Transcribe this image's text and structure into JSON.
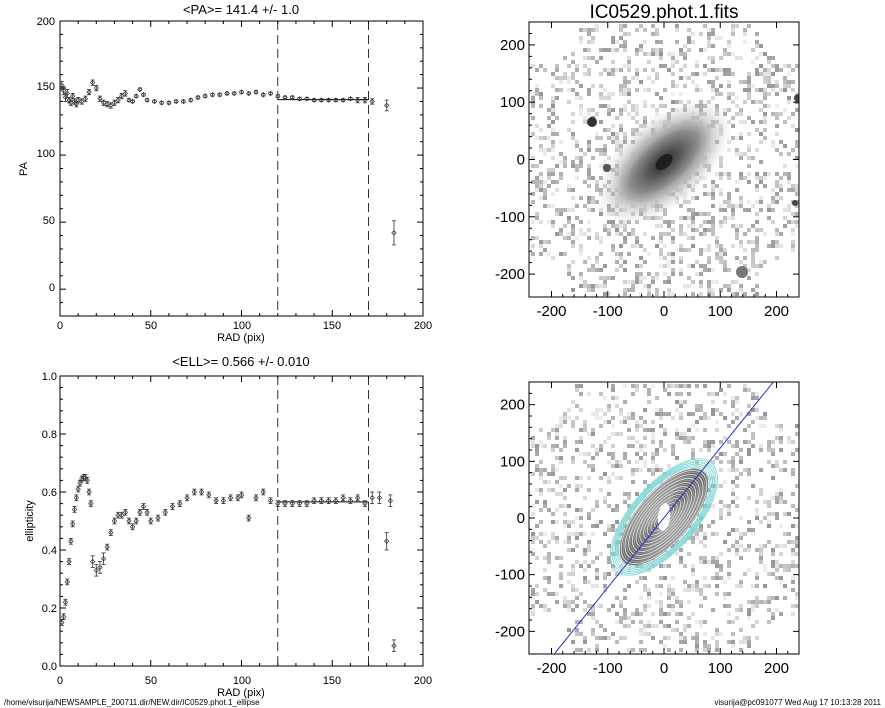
{
  "footer": {
    "left": "/home/visurija/NEWSAMPLE_200711.dir/NEW.dir/IC0529.phot.1_ellipse",
    "right": "visurija@pc091077  Wed Aug 17 10:13:28 2011"
  },
  "colors": {
    "axes": "#000000",
    "data": "#333333",
    "contour_gray": "#d8d8d8",
    "contour_cyan": "#7fd6d6",
    "major_axis_line": "#2233cc"
  },
  "chart_data": [
    {
      "id": "pa",
      "type": "scatter",
      "title": "<PA>= 141.4 +/-   1.0",
      "xlabel": "RAD (pix)",
      "ylabel": "PA",
      "xlim": [
        0,
        200
      ],
      "ylim": [
        -20,
        200
      ],
      "xticks": [
        "0",
        "50",
        "100",
        "150",
        "200"
      ],
      "yticks": [
        "0",
        "50",
        "100",
        "150",
        "200"
      ],
      "mean_line": 141.4,
      "vlines": [
        120,
        170
      ],
      "x": [
        1,
        2,
        3,
        4,
        5,
        6,
        7,
        8,
        9,
        10,
        12,
        14,
        16,
        18,
        20,
        22,
        24,
        26,
        28,
        30,
        32,
        34,
        36,
        38,
        40,
        42,
        44,
        46,
        48,
        52,
        56,
        60,
        64,
        68,
        72,
        76,
        80,
        84,
        88,
        92,
        96,
        100,
        104,
        108,
        112,
        116,
        120,
        124,
        128,
        132,
        136,
        140,
        144,
        148,
        152,
        156,
        160,
        164,
        168,
        172,
        180,
        184
      ],
      "y": [
        152,
        148,
        143,
        146,
        141,
        139,
        144,
        140,
        138,
        141,
        140,
        142,
        147,
        154,
        150,
        142,
        139,
        138,
        137,
        139,
        141,
        144,
        146,
        141,
        140,
        144,
        149,
        145,
        141,
        140,
        139,
        139,
        140,
        140,
        141,
        143,
        144,
        145,
        145,
        146,
        146,
        147,
        146,
        147,
        145,
        146,
        144,
        143,
        143,
        142,
        142,
        141,
        141,
        141,
        141,
        141,
        142,
        141,
        141,
        140,
        137,
        42
      ],
      "err": [
        3,
        3,
        3,
        3,
        2,
        2,
        2,
        2,
        2,
        2,
        2,
        2,
        2,
        2,
        2,
        2,
        2,
        2,
        2,
        2,
        2,
        2,
        2,
        1,
        1,
        1,
        1,
        1,
        1,
        1,
        1,
        1,
        1,
        1,
        1,
        1,
        1,
        1,
        1,
        1,
        1,
        1,
        1,
        1,
        1,
        1,
        1,
        1,
        1,
        1,
        1,
        1,
        1,
        1,
        1,
        1,
        1,
        2,
        2,
        2,
        4,
        9
      ]
    },
    {
      "id": "ell",
      "type": "scatter",
      "title": "<ELL>= 0.566 +/-  0.010",
      "xlabel": "RAD (pix)",
      "ylabel": "ellipticity",
      "xlim": [
        0,
        200
      ],
      "ylim": [
        0.0,
        1.0
      ],
      "xticks": [
        "0",
        "50",
        "100",
        "150",
        "200"
      ],
      "yticks": [
        "0.0",
        "0.2",
        "0.4",
        "0.6",
        "0.8",
        "1.0"
      ],
      "mean_line": 0.566,
      "vlines": [
        120,
        170
      ],
      "x": [
        1,
        2,
        3,
        4,
        5,
        6,
        7,
        8,
        9,
        10,
        11,
        12,
        13,
        14,
        15,
        16,
        17,
        18,
        20,
        22,
        24,
        26,
        28,
        30,
        32,
        34,
        36,
        38,
        40,
        42,
        44,
        46,
        48,
        50,
        54,
        58,
        62,
        66,
        70,
        74,
        78,
        82,
        86,
        90,
        94,
        98,
        100,
        104,
        108,
        112,
        116,
        120,
        124,
        128,
        132,
        136,
        140,
        144,
        148,
        152,
        156,
        160,
        164,
        168,
        172,
        176,
        180,
        182,
        184
      ],
      "y": [
        0.15,
        0.17,
        0.22,
        0.29,
        0.36,
        0.43,
        0.49,
        0.54,
        0.58,
        0.61,
        0.63,
        0.645,
        0.65,
        0.65,
        0.64,
        0.6,
        0.56,
        0.36,
        0.33,
        0.34,
        0.37,
        0.41,
        0.46,
        0.5,
        0.52,
        0.52,
        0.53,
        0.5,
        0.48,
        0.5,
        0.53,
        0.55,
        0.53,
        0.5,
        0.51,
        0.53,
        0.55,
        0.56,
        0.58,
        0.6,
        0.6,
        0.59,
        0.57,
        0.57,
        0.58,
        0.58,
        0.59,
        0.51,
        0.58,
        0.6,
        0.57,
        0.56,
        0.56,
        0.56,
        0.56,
        0.56,
        0.57,
        0.57,
        0.57,
        0.57,
        0.58,
        0.57,
        0.58,
        0.56,
        0.58,
        0.58,
        0.43,
        0.57,
        0.07
      ],
      "err": [
        0.01,
        0.01,
        0.01,
        0.01,
        0.01,
        0.01,
        0.01,
        0.01,
        0.01,
        0.01,
        0.01,
        0.01,
        0.01,
        0.01,
        0.01,
        0.01,
        0.01,
        0.02,
        0.02,
        0.02,
        0.02,
        0.01,
        0.01,
        0.01,
        0.01,
        0.01,
        0.01,
        0.01,
        0.01,
        0.01,
        0.01,
        0.01,
        0.01,
        0.01,
        0.01,
        0.01,
        0.01,
        0.01,
        0.01,
        0.01,
        0.01,
        0.01,
        0.01,
        0.01,
        0.01,
        0.01,
        0.01,
        0.01,
        0.01,
        0.01,
        0.01,
        0.01,
        0.01,
        0.01,
        0.01,
        0.01,
        0.01,
        0.01,
        0.01,
        0.01,
        0.01,
        0.01,
        0.01,
        0.01,
        0.02,
        0.02,
        0.03,
        0.02,
        0.02
      ]
    },
    {
      "id": "image",
      "type": "heatmap",
      "title": "IC0529.phot.1.fits",
      "xlim": [
        -240,
        240
      ],
      "ylim": [
        -240,
        240
      ],
      "xticks": [
        "-200",
        "-100",
        "0",
        "100",
        "200"
      ],
      "yticks": [
        "-200",
        "-100",
        "0",
        "100",
        "200"
      ],
      "galaxy_pa_deg": 141.4,
      "galaxy_ellipticity": 0.566
    },
    {
      "id": "contours",
      "type": "heatmap",
      "xlim": [
        -240,
        240
      ],
      "ylim": [
        -240,
        240
      ],
      "xticks": [
        "-200",
        "-100",
        "0",
        "100",
        "200"
      ],
      "yticks": [
        "-200",
        "-100",
        "0",
        "100",
        "200"
      ],
      "galaxy_pa_deg": 141.4,
      "galaxy_ellipticity": 0.566
    }
  ]
}
